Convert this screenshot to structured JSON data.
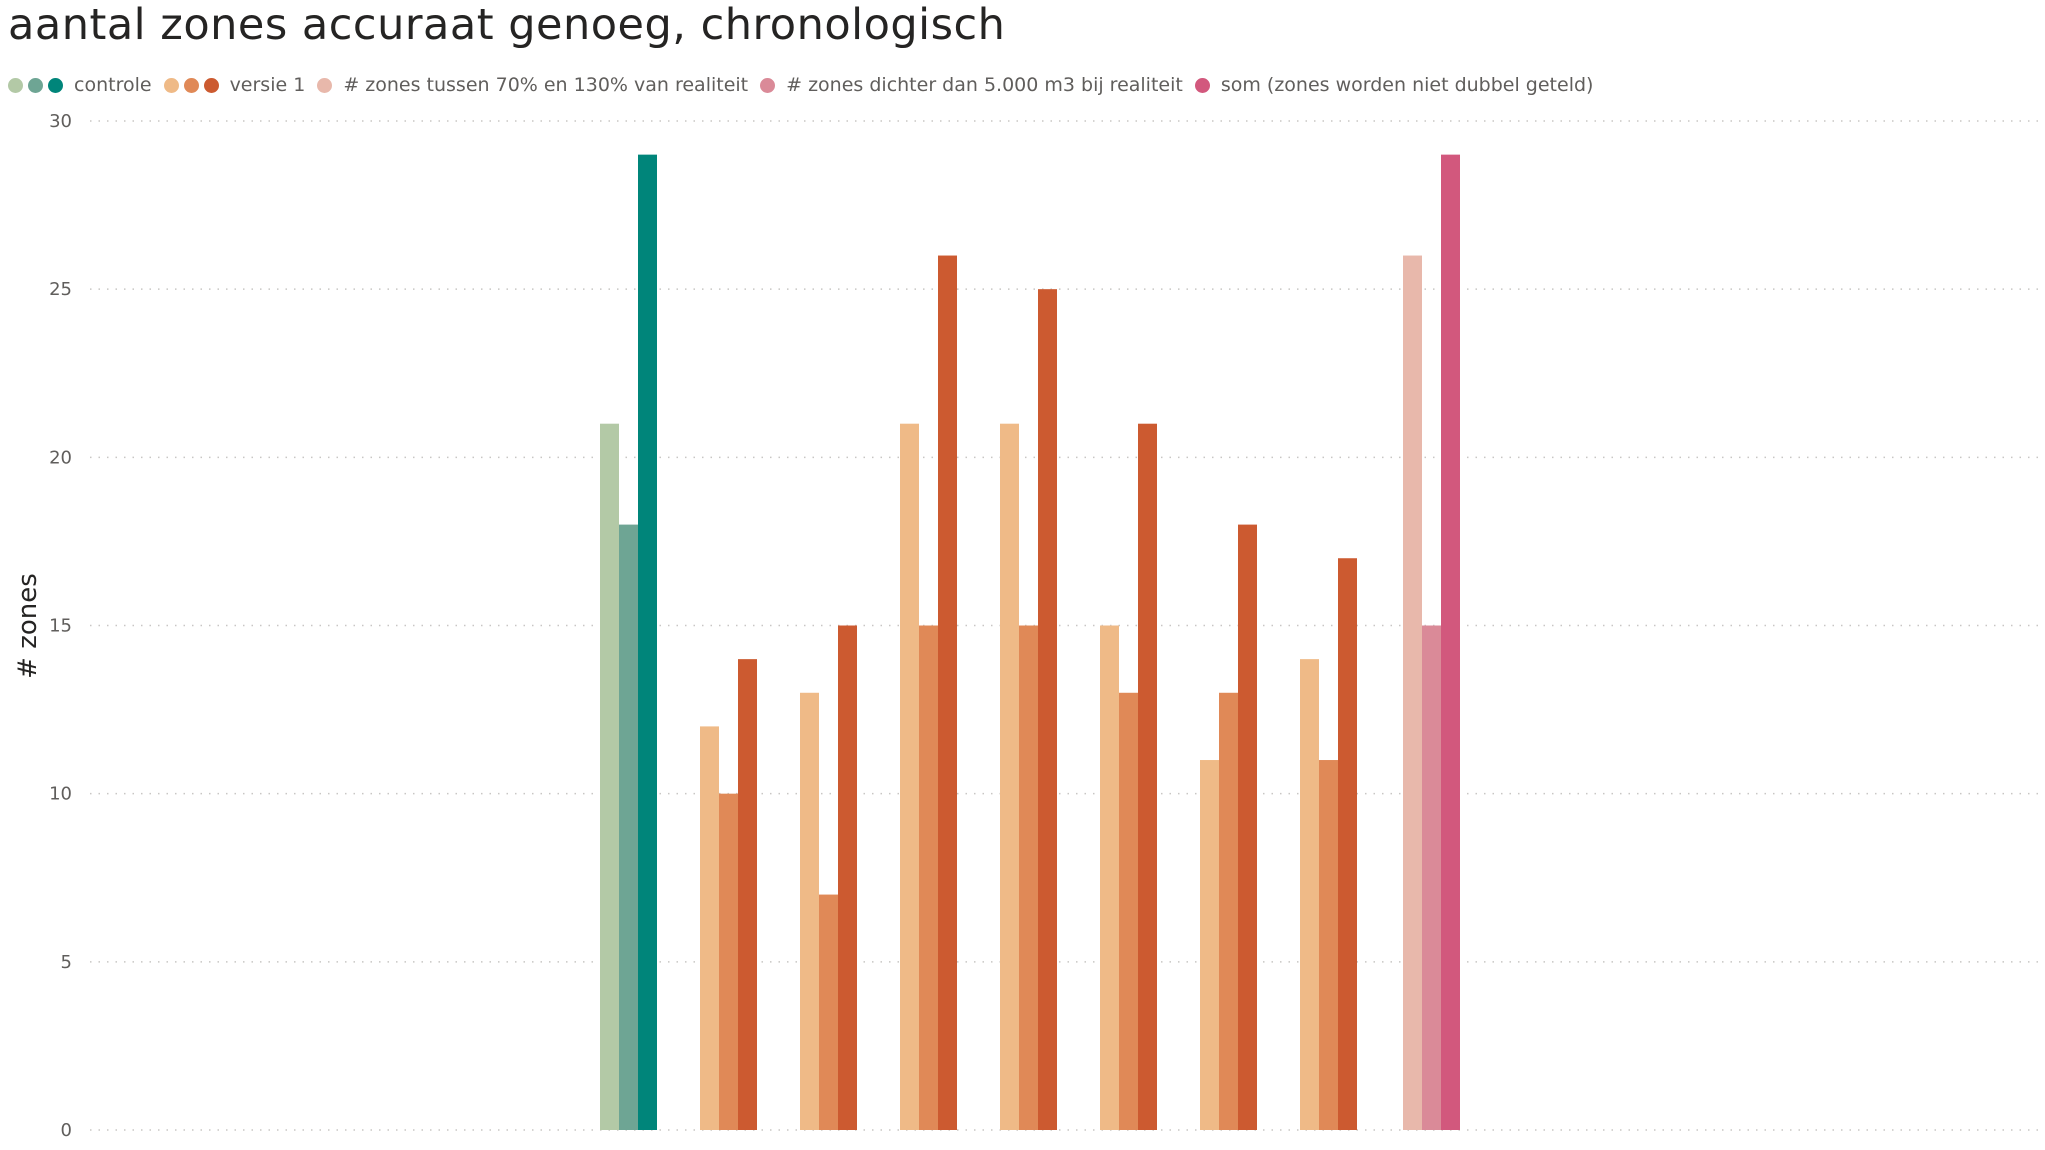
{
  "chart_data": {
    "type": "bar",
    "title": "aantal zones accuraat genoeg, chronologisch",
    "ylabel": "# zones",
    "xlabel": "",
    "ylim": [
      0,
      30
    ],
    "yticks": [
      "0",
      "5",
      "10",
      "15",
      "20",
      "25",
      "30"
    ],
    "grid": true,
    "legend_position": "top-left",
    "legend": [
      {
        "label": "controle",
        "colors": [
          "#b3c9a6",
          "#6ea594",
          "#00857a"
        ]
      },
      {
        "label": "versie 1",
        "colors": [
          "#efba87",
          "#e08957",
          "#cc5a30"
        ]
      },
      {
        "label": "# zones tussen 70% en 130% van realiteit",
        "colors": [
          "#e8b8ab"
        ]
      },
      {
        "label": "# zones dichter dan 5.000 m3 bij realiteit",
        "colors": [
          "#da8a98"
        ]
      },
      {
        "label": "som (zones worden niet dubbel geteld)",
        "colors": [
          "#d2587d"
        ]
      }
    ],
    "groups": [
      {
        "values": [
          21,
          18,
          29
        ],
        "colors": [
          "#b3c9a6",
          "#6ea594",
          "#00857a"
        ]
      },
      {
        "values": [
          12,
          10,
          14
        ],
        "colors": [
          "#efba87",
          "#e08957",
          "#cc5a30"
        ]
      },
      {
        "values": [
          13,
          7,
          15
        ],
        "colors": [
          "#efba87",
          "#e08957",
          "#cc5a30"
        ]
      },
      {
        "values": [
          21,
          15,
          26
        ],
        "colors": [
          "#efba87",
          "#e08957",
          "#cc5a30"
        ]
      },
      {
        "values": [
          21,
          15,
          25
        ],
        "colors": [
          "#efba87",
          "#e08957",
          "#cc5a30"
        ]
      },
      {
        "values": [
          15,
          13,
          21
        ],
        "colors": [
          "#efba87",
          "#e08957",
          "#cc5a30"
        ]
      },
      {
        "values": [
          11,
          13,
          18
        ],
        "colors": [
          "#efba87",
          "#e08957",
          "#cc5a30"
        ]
      },
      {
        "values": [
          14,
          11,
          17
        ],
        "colors": [
          "#efba87",
          "#e08957",
          "#cc5a30"
        ]
      },
      {
        "values": [
          26,
          15,
          29
        ],
        "colors": [
          "#e8b8ab",
          "#da8a98",
          "#d2587d"
        ]
      }
    ]
  }
}
